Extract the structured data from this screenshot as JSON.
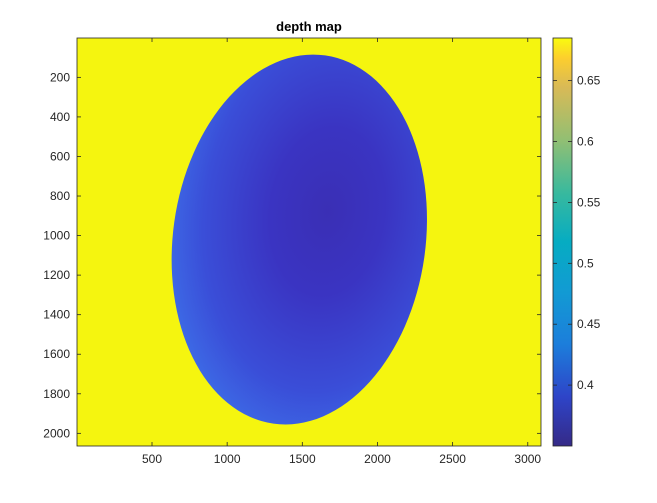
{
  "chart_data": {
    "type": "heatmap",
    "title": "depth map",
    "xlabel": "",
    "ylabel": "",
    "x_ticks": [
      500,
      1000,
      1500,
      2000,
      2500,
      3000
    ],
    "y_ticks": [
      200,
      400,
      600,
      800,
      1000,
      1200,
      1400,
      1600,
      1800,
      2000
    ],
    "xlim": [
      1,
      3088
    ],
    "ylim": [
      2064,
      1
    ],
    "y_direction": "reverse",
    "colormap": "parula",
    "colorbar": {
      "position": "right",
      "clim": [
        0.35,
        0.685
      ],
      "ticks": [
        0.4,
        0.45,
        0.5,
        0.55,
        0.6,
        0.65
      ]
    },
    "background_value": 0.685,
    "object": {
      "shape": "ellipse",
      "center_x": 1480,
      "center_y": 1020,
      "radius_x": 840,
      "radius_y": 940,
      "deepest_point": {
        "x": 1640,
        "y": 860,
        "value": 0.37
      },
      "edge_value": 0.45
    },
    "grid": false,
    "colors": {
      "background": "#f5f50f",
      "object_center": "#3a2fb5",
      "object_edge": "#3f7ff0"
    }
  }
}
